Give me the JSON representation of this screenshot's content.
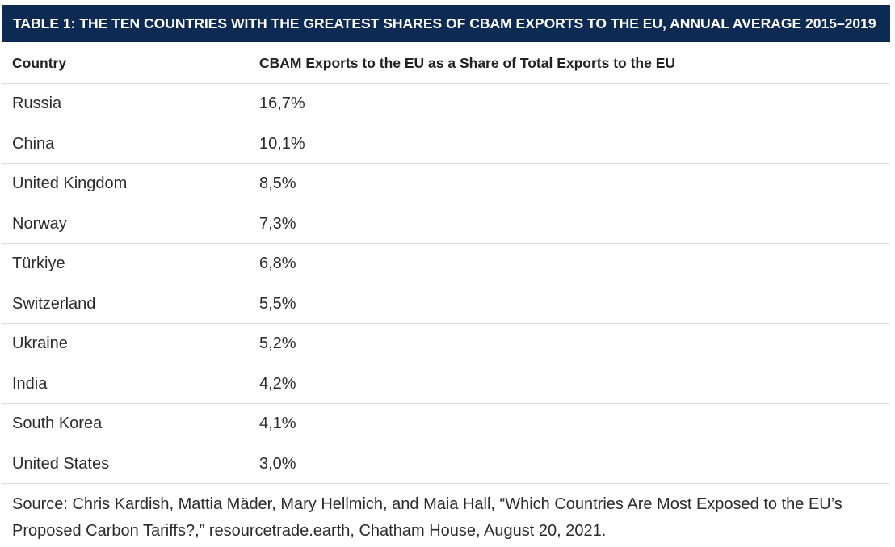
{
  "title": "TABLE 1: THE TEN COUNTRIES WITH THE GREATEST SHARES OF CBAM EXPORTS TO THE EU, ANNUAL AVERAGE 2015–2019",
  "table": {
    "headers": [
      "Country",
      "CBAM Exports to the EU as a Share of Total Exports to the EU"
    ],
    "rows": [
      {
        "country": "Russia",
        "share": "16,7%"
      },
      {
        "country": "China",
        "share": "10,1%"
      },
      {
        "country": "United Kingdom",
        "share": "8,5%"
      },
      {
        "country": "Norway",
        "share": "7,3%"
      },
      {
        "country": "Türkiye",
        "share": "6,8%"
      },
      {
        "country": "Switzerland",
        "share": "5,5%"
      },
      {
        "country": "Ukraine",
        "share": "5,2%"
      },
      {
        "country": "India",
        "share": "4,2%"
      },
      {
        "country": "South Korea",
        "share": "4,1%"
      },
      {
        "country": "United States",
        "share": "3,0%"
      }
    ]
  },
  "source": "Source: Chris Kardish, Mattia Mäder, Mary Hellmich, and Maia Hall, “Which Countries Are Most Exposed to the EU’s Proposed Carbon Tariffs?,” resourcetrade.earth, Chatham House, August 20, 2021.",
  "colors": {
    "title_background": "#0d2b52",
    "title_text": "#ffffff",
    "row_divider": "#dcdcdc"
  }
}
